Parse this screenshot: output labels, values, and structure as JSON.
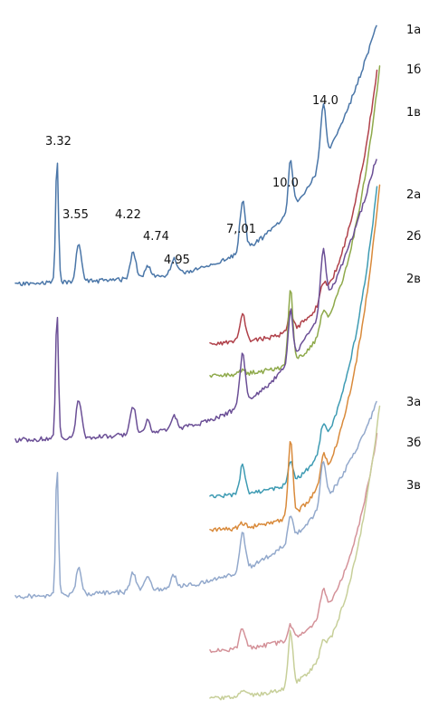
{
  "chart_data": {
    "type": "line",
    "title": "",
    "xlabel": "",
    "ylabel": "",
    "grid": false,
    "legend": "right",
    "x_direction": "decreasing-left-to-right",
    "peak_labels": [
      {
        "text": "3.32",
        "d": 3.32
      },
      {
        "text": "3.55",
        "d": 3.55
      },
      {
        "text": "4.22",
        "d": 4.22
      },
      {
        "text": "4.74",
        "d": 4.74
      },
      {
        "text": "4.95",
        "d": 4.95
      },
      {
        "text": "7,.01",
        "d": 7.01
      },
      {
        "text": "10.0",
        "d": 10.0
      },
      {
        "text": "14.0",
        "d": 14.0
      }
    ],
    "series": [
      {
        "name": "1а",
        "color": "#4a76a8",
        "range": "full",
        "rel_heights": {
          "3.32": 1.0,
          "3.55": 0.3,
          "4.22": 0.22,
          "4.74": 0.1,
          "4.95": 0.12,
          "7.01": 0.4,
          "10.0": 0.4,
          "14.0": 0.45
        }
      },
      {
        "name": "1б",
        "color": "#b0414a",
        "range": "low-angle",
        "rel_heights": {
          "7.01": 0.45,
          "10.0": 0.3,
          "14.0": 0.25
        }
      },
      {
        "name": "1в",
        "color": "#8ea94a",
        "range": "low-angle",
        "rel_heights": {
          "7.01": 0.05,
          "10.0": 0.85,
          "14.0": 0.2
        }
      },
      {
        "name": "2а",
        "color": "#6b4f96",
        "range": "full",
        "rel_heights": {
          "3.32": 1.0,
          "3.55": 0.3,
          "4.22": 0.22,
          "4.74": 0.1,
          "4.95": 0.12,
          "7.01": 0.4,
          "10.0": 0.4,
          "14.0": 0.45
        }
      },
      {
        "name": "2б",
        "color": "#3e9bb3",
        "range": "low-angle",
        "rel_heights": {
          "7.01": 0.4,
          "10.0": 0.3,
          "14.0": 0.3
        }
      },
      {
        "name": "2в",
        "color": "#d98a3b",
        "range": "low-angle",
        "rel_heights": {
          "7.01": 0.05,
          "10.0": 0.85,
          "14.0": 0.25
        }
      },
      {
        "name": "3а",
        "color": "#93a9cc",
        "range": "full",
        "rel_heights": {
          "3.32": 1.0,
          "3.55": 0.2,
          "4.22": 0.15,
          "4.74": 0.12,
          "4.95": 0.1,
          "7.01": 0.3,
          "10.0": 0.2,
          "14.0": 0.35
        }
      },
      {
        "name": "3б",
        "color": "#d49299",
        "range": "low-angle",
        "rel_heights": {
          "7.01": 0.3,
          "10.0": 0.2,
          "14.0": 0.35
        }
      },
      {
        "name": "3в",
        "color": "#c7cf99",
        "range": "low-angle",
        "rel_heights": {
          "7.01": 0.05,
          "10.0": 0.6,
          "14.0": 0.15
        }
      }
    ]
  }
}
